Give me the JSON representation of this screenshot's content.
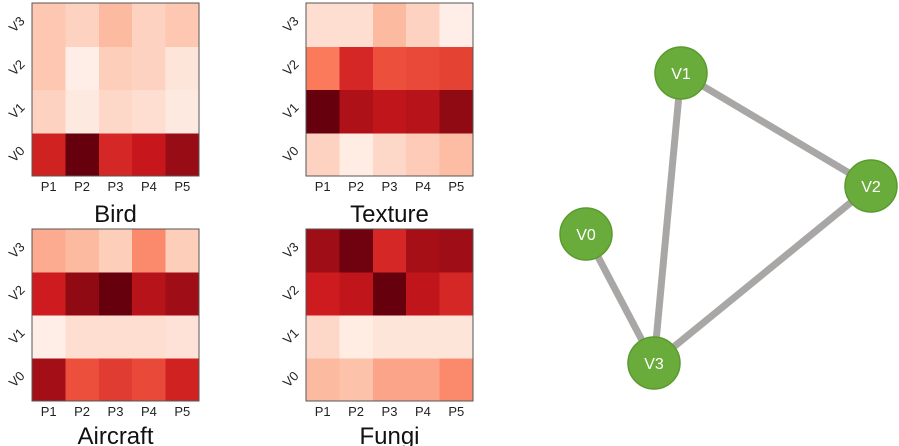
{
  "chart_data": [
    {
      "type": "heatmap",
      "title": "Bird",
      "x_labels": [
        "P1",
        "P2",
        "P3",
        "P4",
        "P5"
      ],
      "y_labels": [
        "V0",
        "V1",
        "V2",
        "V3"
      ],
      "values": [
        [
          0.72,
          1.0,
          0.7,
          0.76,
          0.88
        ],
        [
          0.15,
          0.05,
          0.13,
          0.1,
          0.05
        ],
        [
          0.2,
          0.03,
          0.17,
          0.15,
          0.07
        ],
        [
          0.2,
          0.15,
          0.25,
          0.15,
          0.2
        ]
      ]
    },
    {
      "type": "heatmap",
      "title": "Texture",
      "x_labels": [
        "P1",
        "P2",
        "P3",
        "P4",
        "P5"
      ],
      "y_labels": [
        "V0",
        "V1",
        "V2",
        "V3"
      ],
      "values": [
        [
          0.15,
          0.04,
          0.13,
          0.18,
          0.24
        ],
        [
          1.0,
          0.82,
          0.78,
          0.8,
          0.9
        ],
        [
          0.45,
          0.7,
          0.58,
          0.6,
          0.62
        ],
        [
          0.1,
          0.1,
          0.25,
          0.15,
          0.03
        ]
      ]
    },
    {
      "type": "heatmap",
      "title": "Aircraft",
      "x_labels": [
        "P1",
        "P2",
        "P3",
        "P4",
        "P5"
      ],
      "y_labels": [
        "V0",
        "V1",
        "V2",
        "V3"
      ],
      "values": [
        [
          0.85,
          0.58,
          0.64,
          0.6,
          0.72
        ],
        [
          0.03,
          0.1,
          0.1,
          0.1,
          0.08
        ],
        [
          0.74,
          0.9,
          1.0,
          0.8,
          0.86
        ],
        [
          0.3,
          0.25,
          0.17,
          0.4,
          0.17
        ]
      ]
    },
    {
      "type": "heatmap",
      "title": "Fungi",
      "x_labels": [
        "P1",
        "P2",
        "P3",
        "P4",
        "P5"
      ],
      "y_labels": [
        "V0",
        "V1",
        "V2",
        "V3"
      ],
      "values": [
        [
          0.25,
          0.22,
          0.32,
          0.32,
          0.4
        ],
        [
          0.13,
          0.04,
          0.07,
          0.07,
          0.07
        ],
        [
          0.74,
          0.78,
          1.0,
          0.78,
          0.7
        ],
        [
          0.86,
          0.98,
          0.7,
          0.84,
          0.86
        ]
      ]
    },
    {
      "type": "graph",
      "nodes": [
        "V0",
        "V1",
        "V2",
        "V3"
      ],
      "edges": [
        [
          "V1",
          "V2"
        ],
        [
          "V1",
          "V3"
        ],
        [
          "V2",
          "V3"
        ],
        [
          "V0",
          "V3"
        ]
      ]
    }
  ]
}
